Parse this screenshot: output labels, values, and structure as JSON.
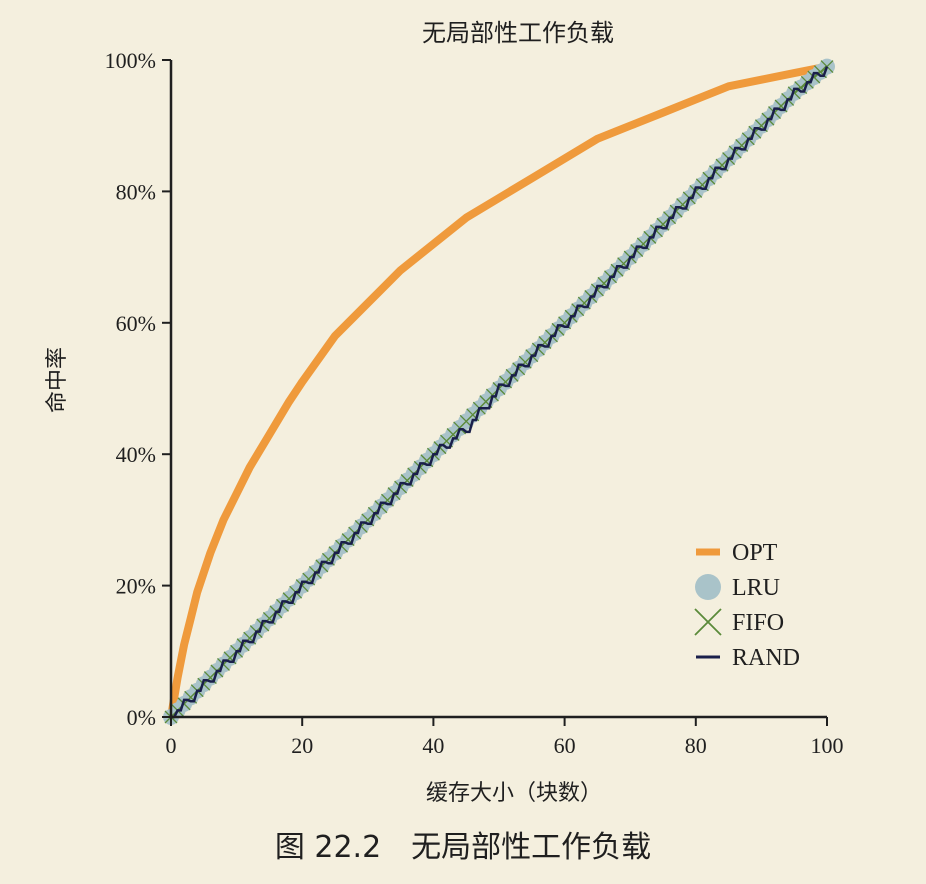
{
  "chart_data": {
    "type": "line",
    "title": "无局部性工作负载",
    "xlabel": "缓存大小（块数）",
    "ylabel": "命中率",
    "xlim": [
      0,
      100
    ],
    "ylim": [
      0,
      100
    ],
    "x_ticks": [
      "0",
      "20",
      "40",
      "60",
      "80",
      "100"
    ],
    "y_ticks": [
      "0%",
      "20%",
      "40%",
      "60%",
      "80%",
      "100%"
    ],
    "grid": false,
    "legend_position": "bottom-right",
    "series": [
      {
        "name": "OPT",
        "style": "line",
        "color": "#ef9a3c",
        "x": [
          0,
          1,
          2,
          3,
          4,
          5,
          6,
          8,
          10,
          12,
          15,
          18,
          20,
          25,
          30,
          35,
          40,
          45,
          50,
          55,
          60,
          65,
          70,
          75,
          80,
          85,
          90,
          95,
          100
        ],
        "y": [
          0,
          6,
          11,
          15,
          19,
          22,
          25,
          30,
          34,
          38,
          43,
          48,
          51,
          58,
          63,
          68,
          72,
          76,
          79,
          82,
          85,
          88,
          90,
          92,
          94,
          96,
          97,
          98,
          99
        ]
      },
      {
        "name": "LRU",
        "style": "circle-marker",
        "color": "#a9c3c9",
        "x": [
          0,
          5,
          10,
          15,
          20,
          25,
          30,
          35,
          40,
          45,
          50,
          55,
          60,
          65,
          70,
          75,
          80,
          85,
          90,
          95,
          100
        ],
        "y": [
          0,
          5,
          10,
          15,
          20,
          25,
          30,
          35,
          40,
          45,
          50,
          55,
          60,
          65,
          70,
          75,
          80,
          85,
          90,
          95,
          99
        ]
      },
      {
        "name": "FIFO",
        "style": "x-marker",
        "color": "#5b8a3a",
        "x": [
          0,
          5,
          10,
          15,
          20,
          25,
          30,
          35,
          40,
          45,
          50,
          55,
          60,
          65,
          70,
          75,
          80,
          85,
          90,
          95,
          100
        ],
        "y": [
          0,
          5,
          10,
          15,
          20,
          25,
          30,
          35,
          40,
          45,
          50,
          55,
          60,
          65,
          70,
          75,
          80,
          85,
          90,
          95,
          99
        ]
      },
      {
        "name": "RAND",
        "style": "line",
        "color": "#1a1f4a",
        "x": [
          0,
          5,
          10,
          15,
          20,
          25,
          30,
          35,
          40,
          45,
          50,
          55,
          60,
          65,
          70,
          75,
          80,
          85,
          90,
          95,
          100
        ],
        "y": [
          0,
          5,
          10,
          15,
          20,
          25,
          30,
          35,
          40,
          44,
          50,
          55,
          60,
          65,
          70,
          75,
          80,
          85,
          90,
          95,
          99
        ]
      }
    ]
  },
  "caption": "图 22.2　无局部性工作负载"
}
